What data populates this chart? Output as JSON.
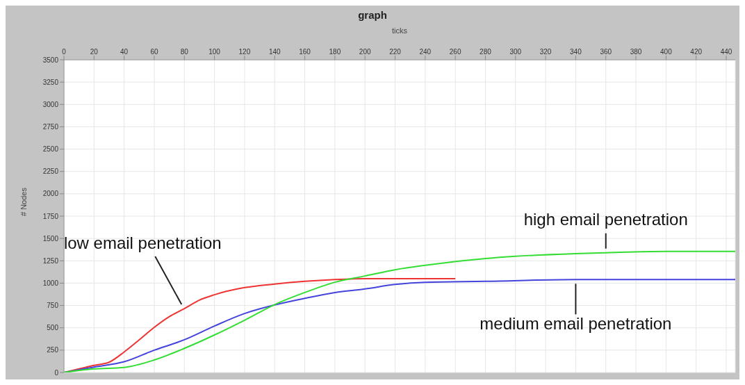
{
  "chart_data": {
    "type": "line",
    "title": "graph",
    "xlabel": "ticks",
    "ylabel": "# Nodes",
    "xlim": [
      0,
      446
    ],
    "xticks": [
      0,
      20,
      40,
      60,
      80,
      100,
      120,
      140,
      160,
      180,
      200,
      220,
      240,
      260,
      280,
      300,
      320,
      340,
      360,
      380,
      400,
      420,
      440
    ],
    "ylim": [
      0,
      3500
    ],
    "yticks": [
      0,
      250,
      500,
      750,
      1000,
      1250,
      1500,
      1750,
      2000,
      2250,
      2500,
      2750,
      3000,
      3250,
      3500
    ],
    "grid": true,
    "marker": "none",
    "line_style": "solid",
    "series": [
      {
        "name": "low email penetration",
        "color": "#ee3333",
        "x": [
          0,
          20,
          30,
          40,
          50,
          60,
          70,
          80,
          90,
          100,
          120,
          140,
          160,
          180,
          200,
          220,
          240,
          260
        ],
        "values": [
          0,
          80,
          115,
          230,
          365,
          505,
          625,
          715,
          810,
          870,
          950,
          990,
          1020,
          1040,
          1050,
          1050,
          1050,
          1050
        ]
      },
      {
        "name": "medium email penetration",
        "color": "#4444dd",
        "x": [
          0,
          20,
          40,
          60,
          80,
          100,
          120,
          140,
          160,
          180,
          200,
          220,
          240,
          280,
          340,
          446
        ],
        "values": [
          0,
          60,
          120,
          250,
          366,
          520,
          660,
          756,
          830,
          895,
          935,
          985,
          1010,
          1020,
          1040,
          1040
        ]
      },
      {
        "name": "high email penetration",
        "color": "#33dd33",
        "x": [
          0,
          20,
          40,
          60,
          80,
          100,
          120,
          140,
          160,
          180,
          200,
          220,
          240,
          280,
          300,
          340,
          360,
          400,
          446
        ],
        "values": [
          0,
          40,
          57,
          140,
          270,
          420,
          585,
          760,
          895,
          1010,
          1080,
          1150,
          1200,
          1275,
          1300,
          1330,
          1340,
          1355,
          1355
        ]
      }
    ]
  }
}
